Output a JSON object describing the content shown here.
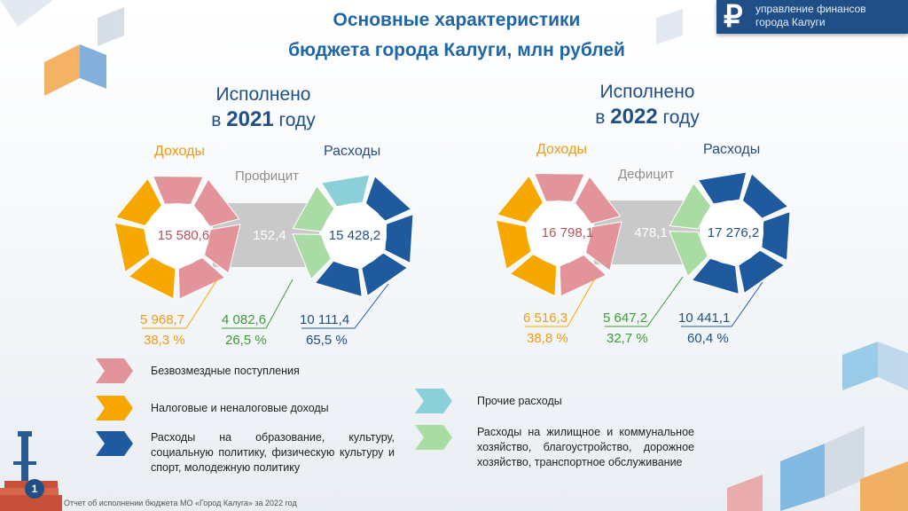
{
  "title_line1": "Основные характеристики",
  "title_line2": "бюджета города Калуги, млн рублей",
  "brand": {
    "symbol": "₽",
    "line1": "управление финансов",
    "line2": "города Калуги"
  },
  "footer": "Отчет об исполнении бюджета МО «Город Калуга» за 2022 год",
  "page_number": "1",
  "chart_data": [
    {
      "type": "pie",
      "year_label_line1": "Исполнено",
      "year_prefix": "в",
      "year": "2021",
      "year_suffix": "году",
      "income_label": "Доходы",
      "expense_label": "Расходы",
      "balance_label": "Профицит",
      "income_total": "15 580,6",
      "balance_value": "152,4",
      "expense_total": "15 428,2",
      "tax_income_value": "5 968,7",
      "tax_income_share": "38,3 %",
      "housing_value": "4 082,6",
      "housing_share": "26,5 %",
      "education_value": "10 111,4",
      "education_share": "65,5 %",
      "income_slices": [
        61.7,
        38.3
      ],
      "expense_slices": [
        8.0,
        65.5,
        26.5
      ]
    },
    {
      "type": "pie",
      "year_label_line1": "Исполнено",
      "year_prefix": "в",
      "year": "2022",
      "year_suffix": "году",
      "income_label": "Доходы",
      "expense_label": "Расходы",
      "balance_label": "Дефицит",
      "income_total": "16 798,1",
      "balance_value": "478,1",
      "expense_total": "17 276,2",
      "tax_income_value": "6 516,3",
      "tax_income_share": "38,8 %",
      "housing_value": "5 647,2",
      "housing_share": "32,7 %",
      "education_value": "10 441,1",
      "education_share": "60,4 %",
      "income_slices": [
        61.2,
        38.8
      ],
      "expense_slices": [
        6.9,
        60.4,
        32.7
      ]
    }
  ],
  "legend": {
    "gratuitous": "Безвозмездные поступления",
    "tax": "Налоговые и неналоговые доходы",
    "education": "Расходы на образование, культуру, социальную политику, физическую культуру и спорт, молодежную политику",
    "other": "Прочие расходы",
    "housing": "Расходы на жилищное и коммунальное хозяйство, благоустройство, дорожное хозяйство, транспортное обслуживание"
  },
  "colors": {
    "pink": "#e3949b",
    "orange": "#f6a800",
    "navy": "#1f5a9e",
    "teal": "#8bd0d8",
    "green": "#a9dca3",
    "title": "#1f66a8"
  }
}
